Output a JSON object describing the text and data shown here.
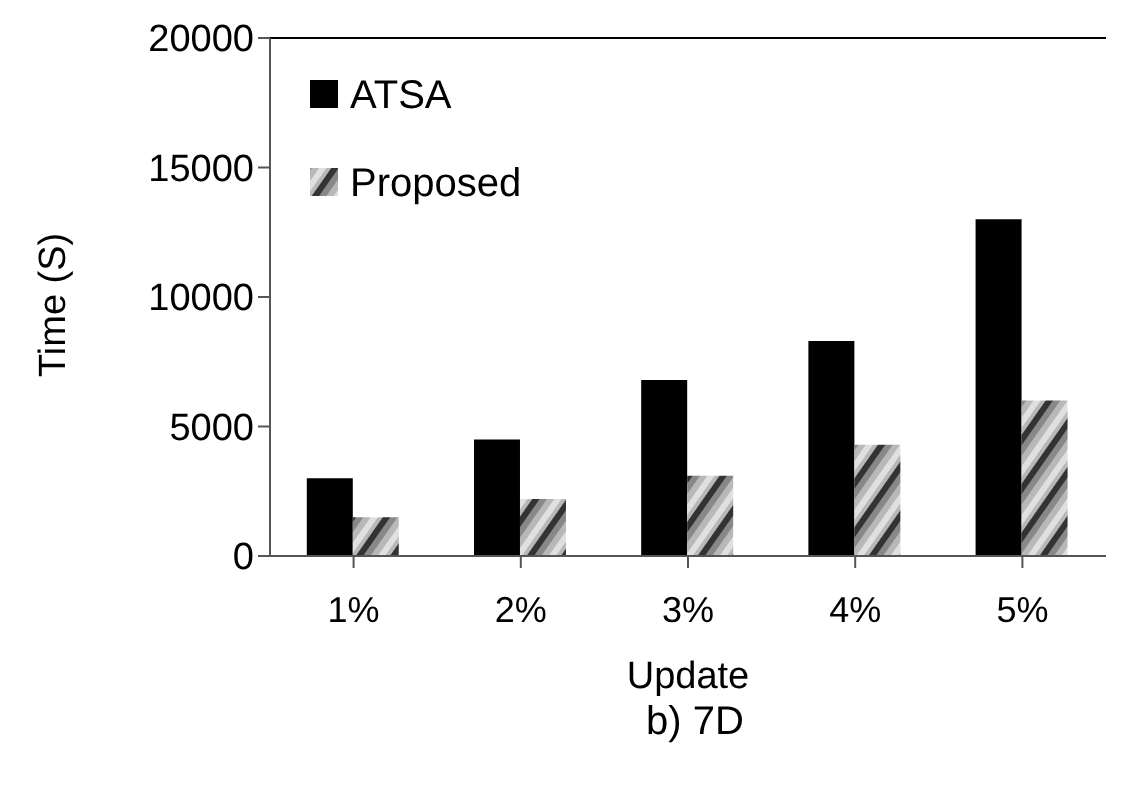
{
  "chart_data": {
    "type": "bar",
    "xlabel": "Update",
    "ylabel": "Time (S)",
    "categories": [
      "1%",
      "2%",
      "3%",
      "4%",
      "5%"
    ],
    "series": [
      {
        "name": "ATSA",
        "color": "#000000",
        "values": [
          3000,
          4500,
          6800,
          8300,
          13000
        ]
      },
      {
        "name": "Proposed",
        "color": "#b8b8b8",
        "values": [
          1500,
          2200,
          3100,
          4300,
          6000
        ]
      }
    ],
    "ylim": [
      0,
      20000
    ],
    "yticks": [
      0,
      5000,
      10000,
      15000,
      20000
    ],
    "legend": "top left",
    "annotations": [
      "b) 7D"
    ]
  }
}
